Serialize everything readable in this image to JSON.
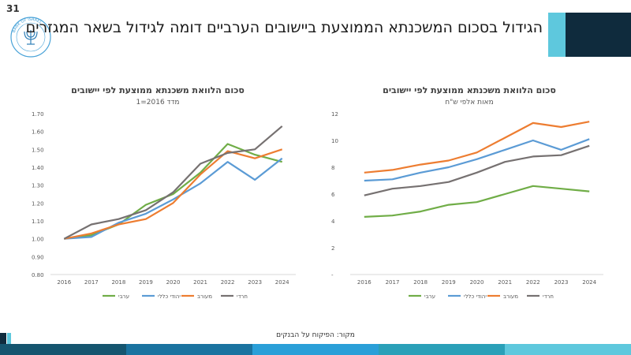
{
  "slide": {
    "number": "31",
    "headline": "הגידול בסכום המשכנתא הממוצעת ביישובים הערביים דומה לגידול בשאר המגזרים",
    "source": "מקור: הפיקוח על הבנקים",
    "logo_text": "בנק ישראל BANK OF ISRAEL",
    "colors": {
      "accent_light": "#5ec8dd",
      "accent_dark": "#0f2b3d",
      "footer": [
        "#15556f",
        "#1a73a0",
        "#2a9fd8",
        "#2aa0b8",
        "#5ec8dd"
      ]
    }
  },
  "chart_data": [
    {
      "id": "left",
      "type": "line",
      "title": "סכום הלוואת משכנתא ממוצעת לפי יישובים",
      "subtitle": "מדד 2016=1",
      "x": [
        "2016",
        "2017",
        "2018",
        "2019",
        "2020",
        "2021",
        "2022",
        "2023",
        "2024"
      ],
      "ylim": [
        0.8,
        1.7
      ],
      "yticks": [
        "0.80",
        "0.90",
        "1.00",
        "1.10",
        "1.20",
        "1.30",
        "1.40",
        "1.50",
        "1.60",
        "1.70"
      ],
      "grid": false,
      "legend_position": "bottom",
      "series": [
        {
          "name": "ערבי",
          "color": "#70ad47",
          "values": [
            1.0,
            1.02,
            1.08,
            1.19,
            1.25,
            1.37,
            1.53,
            1.47,
            1.43
          ]
        },
        {
          "name": "יהודי כללי",
          "color": "#5b9bd5",
          "values": [
            1.0,
            1.01,
            1.09,
            1.14,
            1.22,
            1.31,
            1.43,
            1.33,
            1.45
          ]
        },
        {
          "name": "מעורב",
          "color": "#ed7d31",
          "values": [
            1.0,
            1.03,
            1.08,
            1.11,
            1.2,
            1.36,
            1.49,
            1.45,
            1.5
          ]
        },
        {
          "name": "חרדי",
          "color": "#767171",
          "values": [
            1.0,
            1.08,
            1.11,
            1.16,
            1.26,
            1.42,
            1.48,
            1.5,
            1.63
          ]
        }
      ]
    },
    {
      "id": "right",
      "type": "line",
      "title": "סכום הלוואת משכנתא ממוצעת לפי יישובים",
      "subtitle": "מאות אלפי ש\"ח",
      "x": [
        "2016",
        "2017",
        "2018",
        "2019",
        "2020",
        "2021",
        "2022",
        "2023",
        "2024"
      ],
      "ylim": [
        0,
        12
      ],
      "yticks": [
        "-",
        "2",
        "4",
        "6",
        "8",
        "10",
        "12"
      ],
      "grid": false,
      "legend_position": "bottom",
      "series": [
        {
          "name": "ערבי",
          "color": "#70ad47",
          "values": [
            4.3,
            4.4,
            4.7,
            5.2,
            5.4,
            6.0,
            6.6,
            6.4,
            6.2
          ]
        },
        {
          "name": "יהודי כללי",
          "color": "#5b9bd5",
          "values": [
            7.0,
            7.1,
            7.6,
            8.0,
            8.6,
            9.3,
            10.0,
            9.3,
            10.1
          ]
        },
        {
          "name": "מעורב",
          "color": "#ed7d31",
          "values": [
            7.6,
            7.8,
            8.2,
            8.5,
            9.1,
            10.2,
            11.3,
            11.0,
            11.4
          ]
        },
        {
          "name": "חרדי",
          "color": "#767171",
          "values": [
            5.9,
            6.4,
            6.6,
            6.9,
            7.6,
            8.4,
            8.8,
            8.9,
            9.6
          ]
        }
      ]
    }
  ]
}
